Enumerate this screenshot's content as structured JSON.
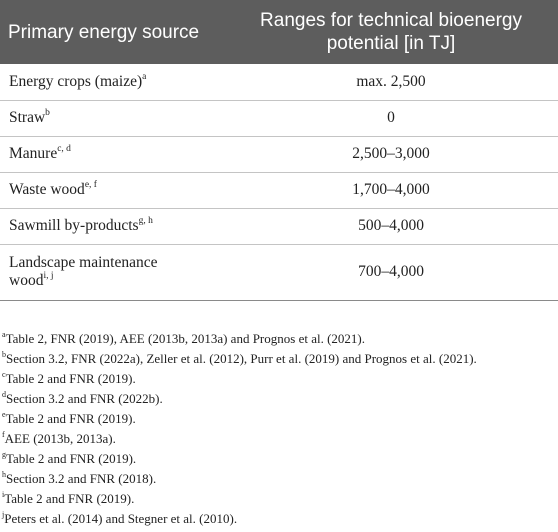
{
  "table": {
    "headers": [
      "Primary energy source",
      "Ranges for technical bioenergy potential [in TJ]"
    ],
    "rows": [
      {
        "source": "Energy crops (maize)",
        "sup": "a",
        "range": "max. 2,500"
      },
      {
        "source": "Straw",
        "sup": "b",
        "range": "0"
      },
      {
        "source": "Manure",
        "sup": "c, d",
        "range": "2,500–3,000"
      },
      {
        "source": "Waste wood",
        "sup": "e, f",
        "range": "1,700–4,000"
      },
      {
        "source": "Sawmill by-products",
        "sup": "g, h",
        "range": "500–4,000"
      },
      {
        "source_line1": "Landscape maintenance",
        "source_line2": "wood",
        "sup": "i, j",
        "range": "700–4,000"
      }
    ]
  },
  "footnotes": [
    {
      "mark": "a",
      "text": "Table 2, FNR (2019), AEE (2013b, 2013a) and Prognos et al. (2021)."
    },
    {
      "mark": "b",
      "text": "Section 3.2, FNR (2022a), Zeller et al. (2012), Purr et al. (2019) and Prognos et al. (2021)."
    },
    {
      "mark": "c",
      "text": "Table 2 and FNR (2019)."
    },
    {
      "mark": "d",
      "text": "Section 3.2 and FNR (2022b)."
    },
    {
      "mark": "e",
      "text": "Table 2 and FNR (2019)."
    },
    {
      "mark": "f",
      "text": "AEE (2013b, 2013a)."
    },
    {
      "mark": "g",
      "text": "Table 2 and FNR (2019)."
    },
    {
      "mark": "h",
      "text": "Section 3.2 and FNR (2018)."
    },
    {
      "mark": "i",
      "text": "Table 2 and FNR (2019)."
    },
    {
      "mark": "j",
      "text": "Peters et al. (2014) and Stegner et al. (2010)."
    }
  ]
}
